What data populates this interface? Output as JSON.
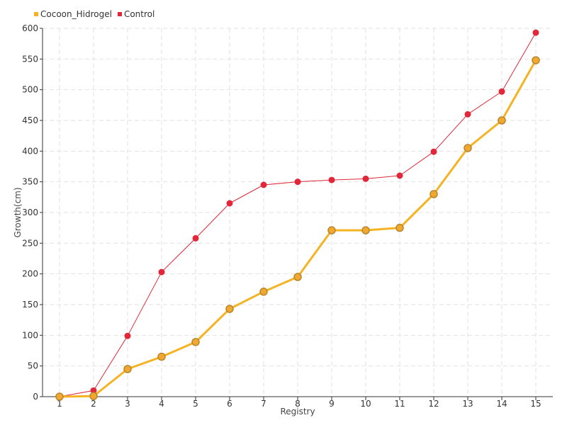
{
  "chart_data": {
    "type": "line",
    "xlabel": "Registry",
    "ylabel": "Growth(cm)",
    "ylim": [
      0,
      600
    ],
    "yticks": [
      0,
      50,
      100,
      150,
      200,
      250,
      300,
      350,
      400,
      450,
      500,
      550,
      600
    ],
    "categories": [
      "1",
      "2",
      "3",
      "4",
      "5",
      "6",
      "7",
      "8",
      "9",
      "10",
      "11",
      "12",
      "13",
      "14",
      "15"
    ],
    "grid": true,
    "legend_position": "top-left",
    "series": [
      {
        "name": "Cocoon_Hidrogel",
        "color": "#f5b323",
        "marker_fill": "#f0a830",
        "marker_stroke": "#b8862a",
        "values": [
          0,
          1,
          45,
          65,
          89,
          143,
          171,
          195,
          271,
          271,
          275,
          330,
          405,
          450,
          548
        ]
      },
      {
        "name": "Control",
        "color": "#e0283a",
        "values": [
          0,
          10,
          99,
          203,
          258,
          315,
          345,
          350,
          353,
          355,
          360,
          399,
          460,
          497,
          593
        ]
      }
    ]
  }
}
